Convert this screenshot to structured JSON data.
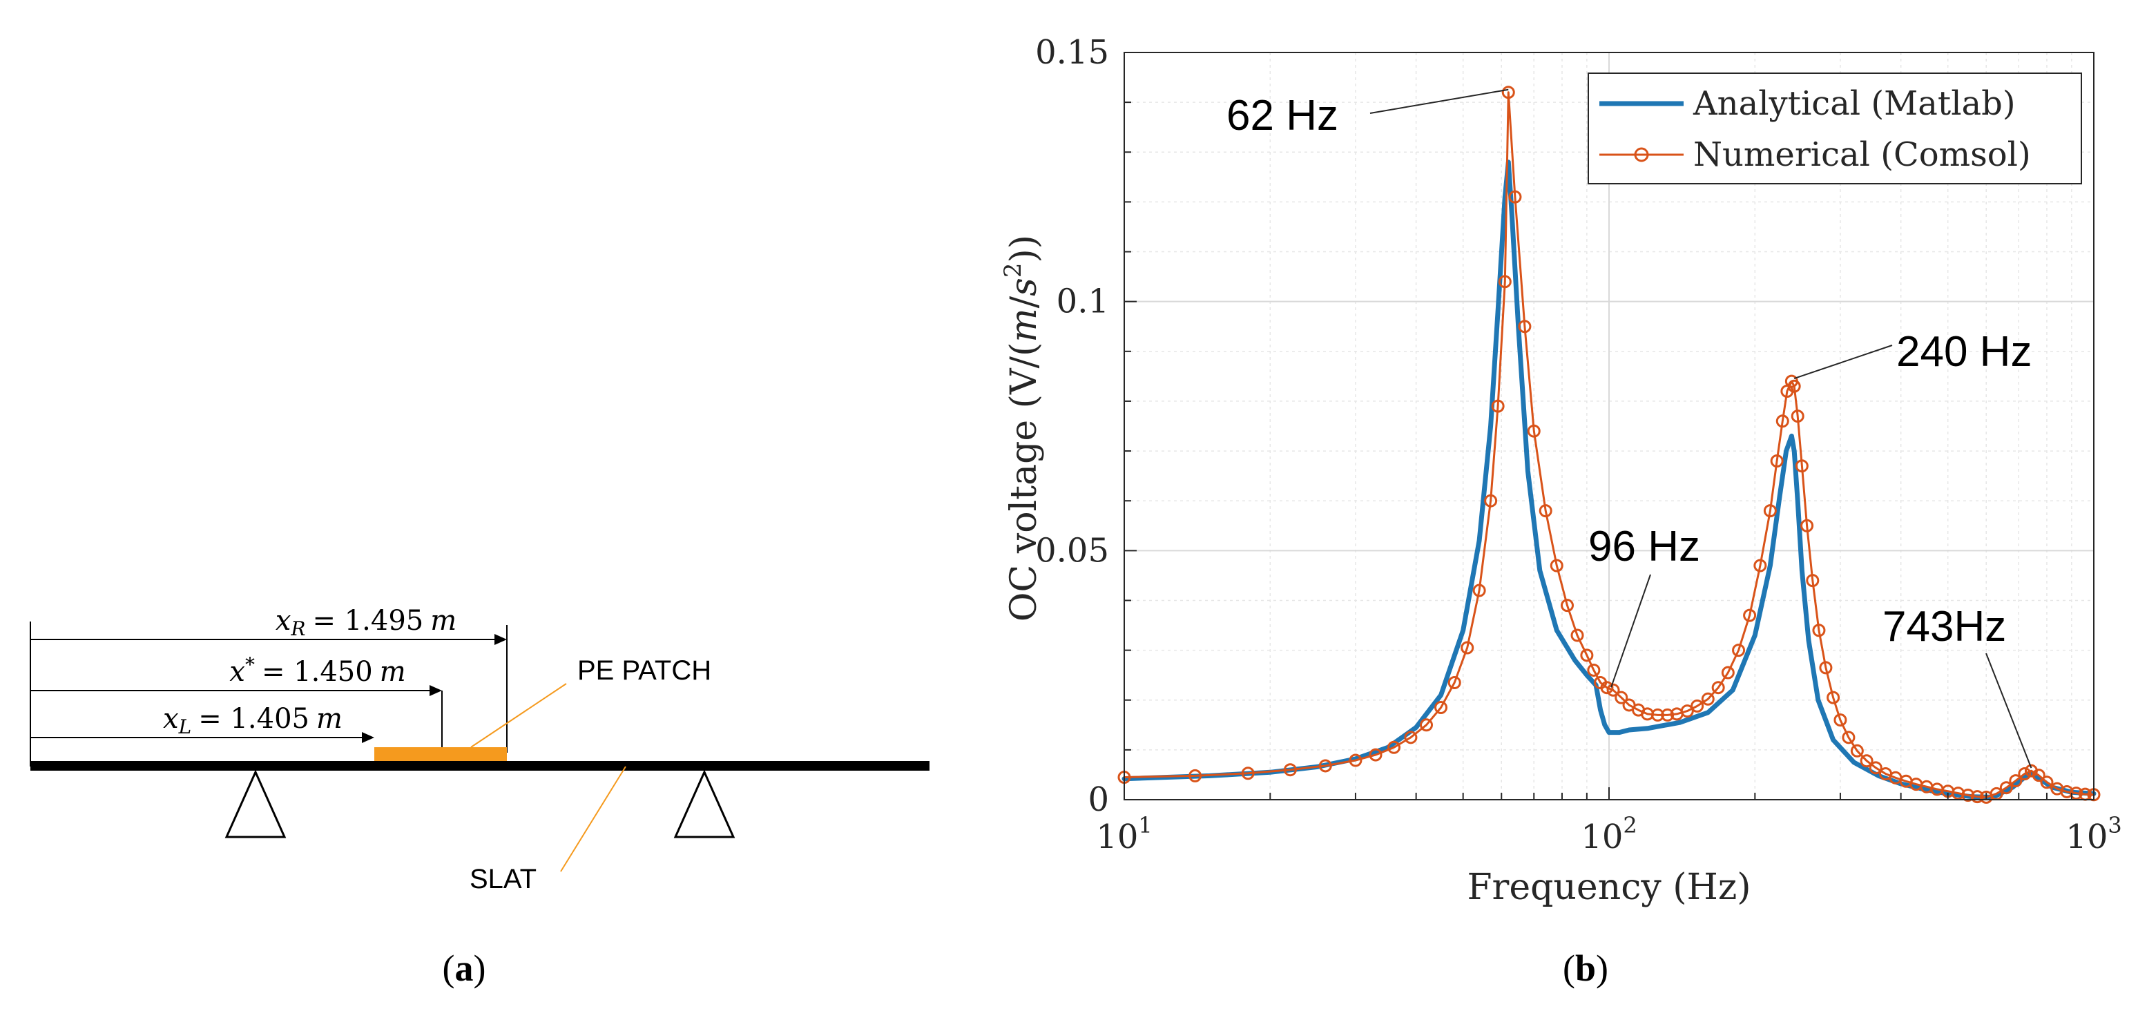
{
  "panel_a": {
    "caption_label": "a",
    "dimension_labels": {
      "xR": {
        "symbol": "x",
        "subscript": "R",
        "value": "= 1.495",
        "unit": "m"
      },
      "xStar": {
        "symbol": "x",
        "superscript": "*",
        "value": "= 1.450",
        "unit": "m"
      },
      "xL": {
        "symbol": "x",
        "subscript": "L",
        "value": "= 1.405",
        "unit": "m"
      }
    },
    "pe_patch_label": "PE PATCH",
    "slat_label": "SLAT",
    "patch_color": "#F59A1E"
  },
  "panel_b": {
    "caption_label": "b"
  },
  "chart_data": {
    "type": "line",
    "x_scale": "log",
    "xlabel": "Frequency (Hz)",
    "ylabel": "OC voltage (V/(m/s²))",
    "ylabel_parts": {
      "before": "OC voltage (V/(",
      "italic1": "m",
      "slash": "/",
      "italic2": "s",
      "sup": "2",
      "after": "))"
    },
    "xlim": [
      10,
      1000
    ],
    "ylim": [
      0,
      0.15
    ],
    "x_ticks": [
      {
        "value": 10,
        "base": "10",
        "exp": "1"
      },
      {
        "value": 100,
        "base": "10",
        "exp": "2"
      },
      {
        "value": 1000,
        "base": "10",
        "exp": "3"
      }
    ],
    "y_ticks": [
      {
        "value": 0,
        "label": "0"
      },
      {
        "value": 0.05,
        "label": "0.05"
      },
      {
        "value": 0.1,
        "label": "0.1"
      },
      {
        "value": 0.15,
        "label": "0.15"
      }
    ],
    "grid": true,
    "legend_position": "top-right",
    "series": [
      {
        "name": "Analytical (Matlab)",
        "color": "#1F77B4",
        "marker": "none",
        "x": [
          10,
          15,
          20,
          25,
          30,
          35,
          40,
          45,
          50,
          54,
          57,
          59,
          61,
          62,
          63,
          65,
          68,
          72,
          78,
          85,
          90,
          94,
          96,
          98,
          100,
          105,
          110,
          120,
          140,
          160,
          180,
          200,
          215,
          225,
          232,
          238,
          241,
          245,
          250,
          258,
          270,
          290,
          320,
          360,
          400,
          450,
          500,
          560,
          620,
          680,
          720,
          743,
          770,
          820,
          900,
          1000
        ],
        "y": [
          0.0042,
          0.0048,
          0.0055,
          0.0066,
          0.0082,
          0.0105,
          0.0145,
          0.021,
          0.034,
          0.052,
          0.075,
          0.098,
          0.121,
          0.128,
          0.118,
          0.095,
          0.066,
          0.046,
          0.034,
          0.028,
          0.025,
          0.023,
          0.018,
          0.015,
          0.0135,
          0.0135,
          0.014,
          0.0143,
          0.0155,
          0.0175,
          0.022,
          0.033,
          0.047,
          0.061,
          0.07,
          0.073,
          0.07,
          0.06,
          0.046,
          0.032,
          0.02,
          0.012,
          0.0075,
          0.0048,
          0.0032,
          0.002,
          0.0012,
          0.0006,
          0.0005,
          0.0025,
          0.0045,
          0.0052,
          0.0043,
          0.0025,
          0.0015,
          0.0012
        ]
      },
      {
        "name": "Numerical (Comsol)",
        "color": "#D95319",
        "marker": "circle",
        "x": [
          10,
          14,
          18,
          22,
          26,
          30,
          33,
          36,
          39,
          42,
          45,
          48,
          51,
          54,
          57,
          59,
          61,
          62,
          64,
          67,
          70,
          74,
          78,
          82,
          86,
          90,
          93,
          96,
          99,
          102,
          106,
          110,
          115,
          120,
          126,
          132,
          138,
          145,
          152,
          160,
          168,
          176,
          185,
          195,
          205,
          215,
          222,
          228,
          233,
          238,
          241,
          245,
          250,
          256,
          263,
          271,
          280,
          290,
          300,
          312,
          325,
          340,
          355,
          372,
          390,
          410,
          430,
          452,
          475,
          500,
          525,
          550,
          575,
          600,
          630,
          660,
          690,
          720,
          743,
          770,
          800,
          840,
          880,
          920,
          960,
          1000
        ],
        "y": [
          0.0045,
          0.0048,
          0.0053,
          0.006,
          0.0068,
          0.0079,
          0.009,
          0.0105,
          0.0125,
          0.015,
          0.0185,
          0.0235,
          0.0305,
          0.042,
          0.06,
          0.079,
          0.104,
          0.142,
          0.121,
          0.095,
          0.074,
          0.058,
          0.047,
          0.039,
          0.033,
          0.029,
          0.026,
          0.0235,
          0.0225,
          0.022,
          0.0205,
          0.019,
          0.018,
          0.0172,
          0.017,
          0.017,
          0.0172,
          0.0178,
          0.0188,
          0.0202,
          0.0225,
          0.0255,
          0.03,
          0.037,
          0.047,
          0.058,
          0.068,
          0.076,
          0.082,
          0.084,
          0.083,
          0.077,
          0.067,
          0.055,
          0.044,
          0.034,
          0.0265,
          0.0205,
          0.016,
          0.0125,
          0.0098,
          0.0078,
          0.0064,
          0.0052,
          0.0044,
          0.0037,
          0.0031,
          0.0026,
          0.0021,
          0.0017,
          0.0013,
          0.0009,
          0.0006,
          0.0005,
          0.0012,
          0.0024,
          0.0038,
          0.0052,
          0.0058,
          0.0049,
          0.0035,
          0.0022,
          0.0016,
          0.0013,
          0.0011,
          0.001
        ]
      }
    ],
    "annotations": [
      {
        "text": "62 Hz",
        "target_x": 62,
        "target_y": 0.142
      },
      {
        "text": "240 Hz",
        "target_x": 241,
        "target_y": 0.084
      },
      {
        "text": "96 Hz",
        "target_x": 101,
        "target_y": 0.022
      },
      {
        "text": "743Hz",
        "target_x": 743,
        "target_y": 0.0058
      }
    ]
  }
}
